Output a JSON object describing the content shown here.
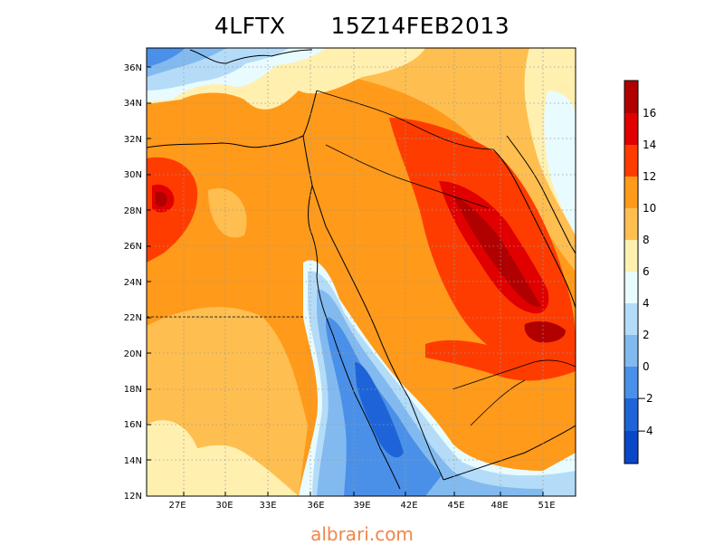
{
  "title": {
    "variable": "4LFTX",
    "time": "15Z14FEB2013"
  },
  "footer": {
    "site": "albrari.com"
  },
  "axes": {
    "lon_ticks": [
      "27E",
      "30E",
      "33E",
      "36E",
      "39E",
      "42E",
      "45E",
      "48E",
      "51E"
    ],
    "lat_ticks": [
      "12N",
      "14N",
      "16N",
      "18N",
      "20N",
      "22N",
      "24N",
      "26N",
      "28N",
      "30N",
      "32N",
      "34N",
      "36N"
    ]
  },
  "colorbar": {
    "labels": [
      "16",
      "14",
      "12",
      "10",
      "8",
      "6",
      "4",
      "2",
      "0",
      "−2",
      "−4"
    ],
    "colors": [
      "#b00000",
      "#e00000",
      "#ff3c00",
      "#ff9a1a",
      "#ffbe50",
      "#fff0b0",
      "#e8fbff",
      "#b4dcf8",
      "#82baf0",
      "#4a90e8",
      "#1e64d8",
      "#0a46c8"
    ]
  },
  "map_data": {
    "field": "4-layer lifted index",
    "projection": "lat-lon",
    "lon_range": [
      25,
      53
    ],
    "lat_range": [
      12,
      37
    ],
    "grid": true
  },
  "palette": {
    "blue_dark": "#1e64d8",
    "blue": "#4a90e8",
    "blue_mid": "#82baf0",
    "blue_light": "#b4dcf8",
    "cyan_pale": "#e8fbff",
    "cream": "#fff0b0",
    "orange_light": "#ffbe50",
    "orange": "#ff9a1a",
    "orange_red": "#ff3c00",
    "red": "#e00000",
    "dark_red": "#b00000"
  }
}
